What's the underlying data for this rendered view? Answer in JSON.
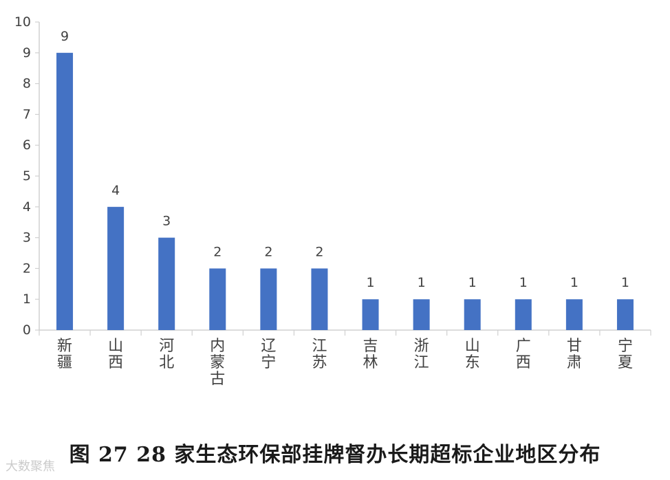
{
  "chart_data": {
    "type": "bar",
    "categories": [
      "新疆",
      "山西",
      "河北",
      "内蒙古",
      "辽宁",
      "江苏",
      "吉林",
      "浙江",
      "山东",
      "广西",
      "甘肃",
      "宁夏"
    ],
    "values": [
      9,
      4,
      3,
      2,
      2,
      2,
      1,
      1,
      1,
      1,
      1,
      1
    ],
    "ylim": [
      0,
      10
    ],
    "yticks": [
      0,
      1,
      2,
      3,
      4,
      5,
      6,
      7,
      8,
      9,
      10
    ],
    "title": "",
    "xlabel": "",
    "ylabel": "",
    "grid": false,
    "bar_color": "#4472C4",
    "data_labels": true
  },
  "caption": "图 27    28 家生态环保部挂牌督办长期超标企业地区分布",
  "watermark": "大数聚焦"
}
